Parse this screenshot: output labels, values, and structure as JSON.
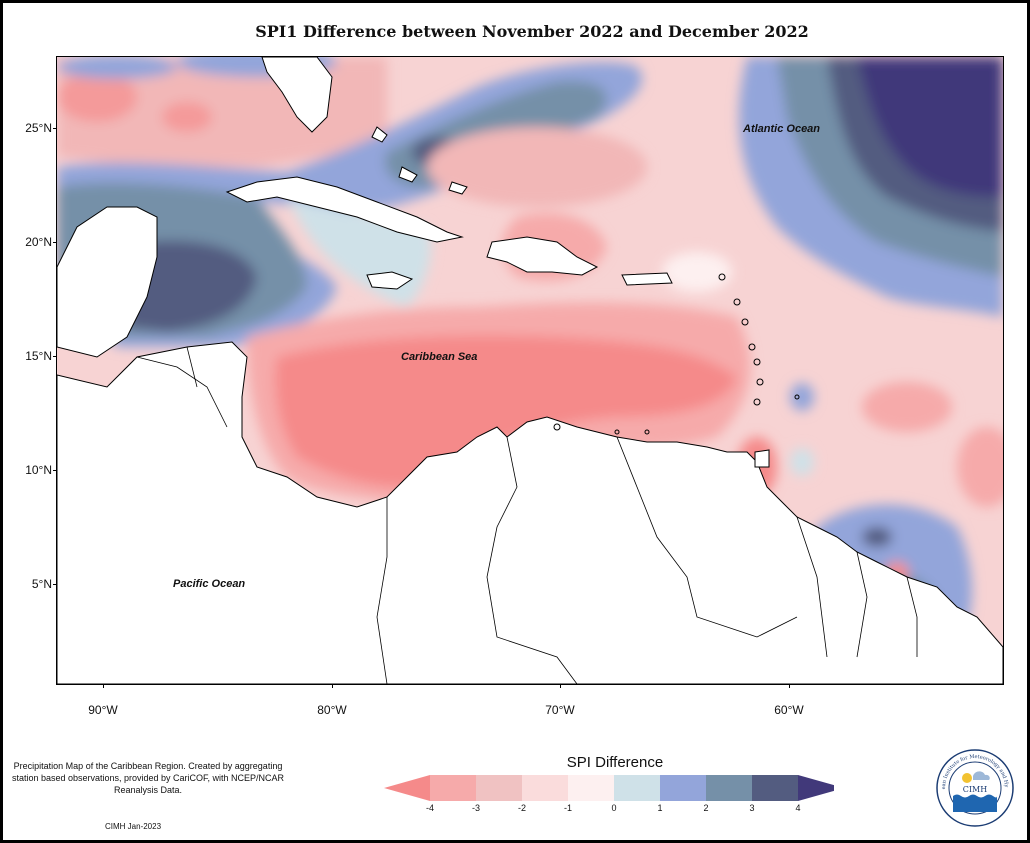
{
  "title": "SPI1 Difference between November 2022 and December 2022",
  "map": {
    "lat_labels": [
      "25°N",
      "20°N",
      "15°N",
      "10°N",
      "5°N"
    ],
    "lon_labels": [
      "90°W",
      "80°W",
      "70°W",
      "60°W"
    ],
    "regions": {
      "atlantic": "Atlantic Ocean",
      "caribbean": "Caribbean Sea",
      "pacific": "Pacific Ocean"
    }
  },
  "legend": {
    "title": "SPI Difference",
    "ticks": [
      "-4",
      "-3",
      "-2",
      "-1",
      "0",
      "1",
      "2",
      "3",
      "4"
    ],
    "colors": [
      "#f58a8a",
      "#f6aaaa",
      "#f0c2c2",
      "#fadcdc",
      "#fdf0f0",
      "#cfe1e8",
      "#93a5da",
      "#7590a8",
      "#535c80",
      "#41397a"
    ]
  },
  "footer": {
    "description": "Precipitation Map of the Caribbean Region. Created by aggregating station based observations, provided by CariCOF, with NCEP/NCAR Reanalysis Data.",
    "date": "CIMH Jan-2023"
  },
  "logo": {
    "text": "CIMH",
    "arc_text": "Caribbean Institute for Meteorology and Hydrology"
  }
}
